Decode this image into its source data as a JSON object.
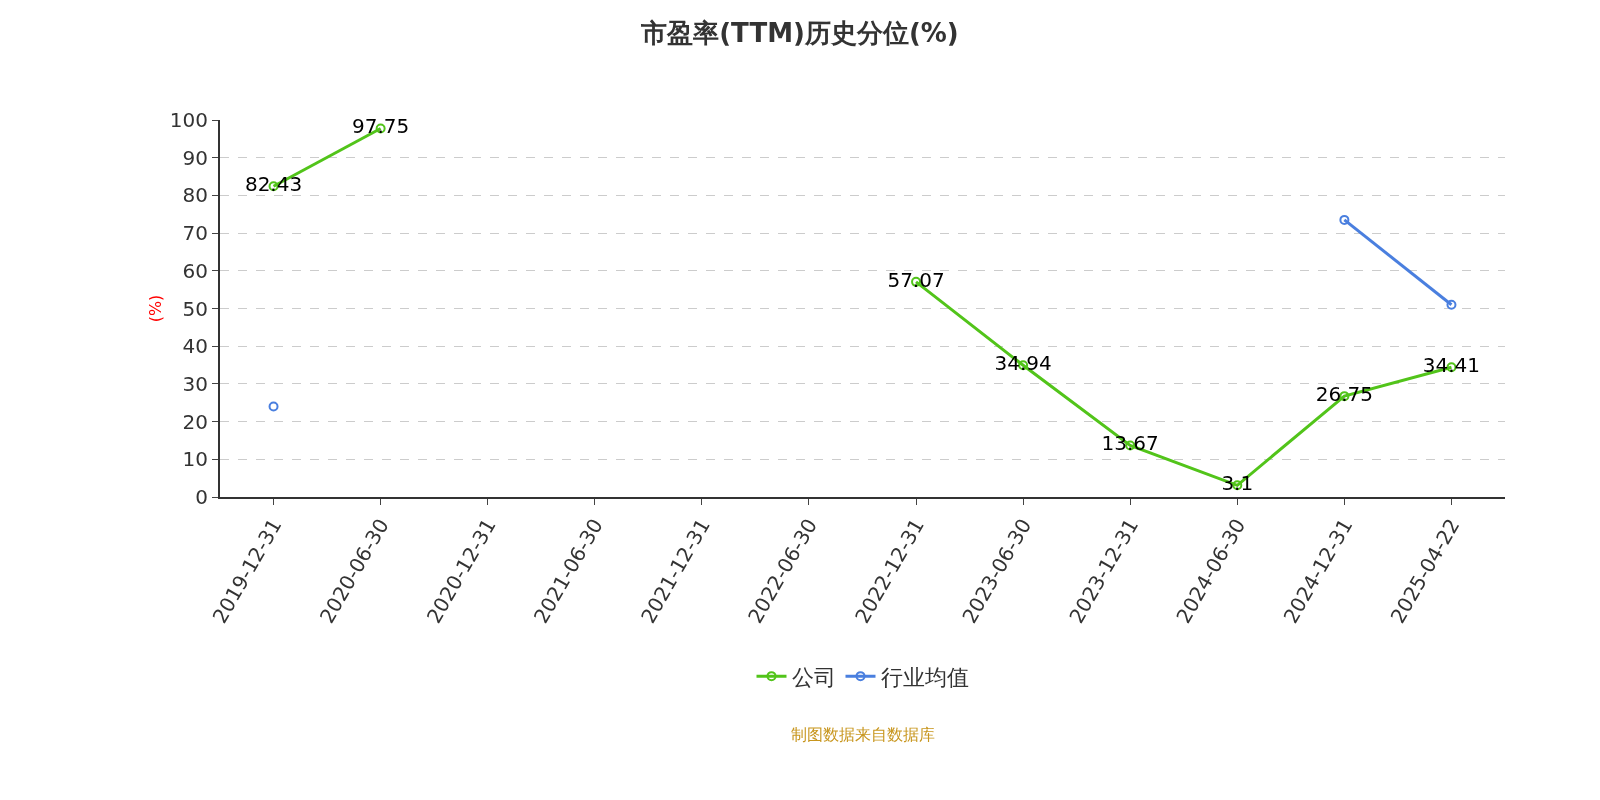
{
  "chart_data": {
    "type": "line",
    "title": "市盈率(TTM)历史分位(%)",
    "ylabel": "(%)",
    "categories": [
      "2019-12-31",
      "2020-06-30",
      "2020-12-31",
      "2021-06-30",
      "2021-12-31",
      "2022-06-30",
      "2022-12-31",
      "2023-06-30",
      "2023-12-31",
      "2024-06-30",
      "2024-12-31",
      "2025-04-22"
    ],
    "series": [
      {
        "name": "公司",
        "color": "#52c41a",
        "values": [
          82.43,
          97.75,
          null,
          null,
          null,
          null,
          57.07,
          34.94,
          13.67,
          3.1,
          26.75,
          34.41
        ],
        "value_labels": [
          "82.43",
          "97.75",
          null,
          null,
          null,
          null,
          "57.07",
          "34.94",
          "13.67",
          "3.1",
          "26.75",
          "34.41"
        ]
      },
      {
        "name": "行业均值",
        "color": "#4a7fdf",
        "values": [
          24,
          null,
          null,
          null,
          null,
          null,
          null,
          null,
          null,
          null,
          73.5,
          51
        ]
      }
    ],
    "ylim": [
      0,
      100
    ],
    "yticks": [
      0,
      10,
      20,
      30,
      40,
      50,
      60,
      70,
      80,
      90,
      100
    ],
    "grid": "y",
    "legend": "bottom",
    "marker": "circle",
    "line_style": "solid",
    "annotations": [
      "制图数据来自数据库"
    ]
  }
}
